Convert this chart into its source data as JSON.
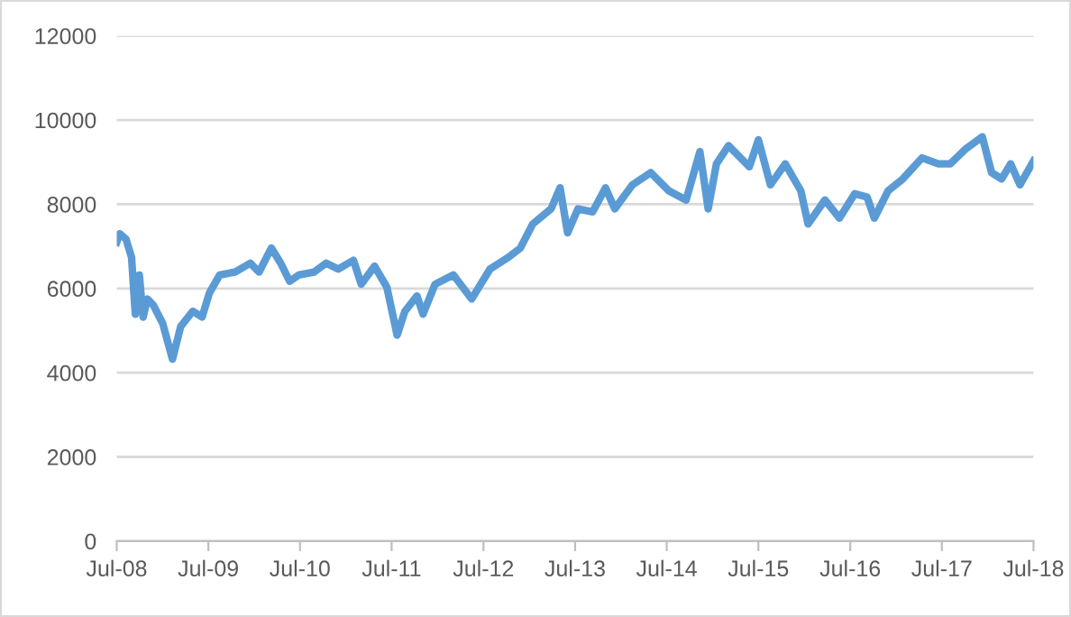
{
  "chart_data": {
    "type": "line",
    "x": [
      "2008-07-01",
      "2008-07-13",
      "2008-08-07",
      "2008-08-29",
      "2008-09-13",
      "2008-09-29",
      "2008-10-14",
      "2008-10-31",
      "2008-11-24",
      "2008-12-31",
      "2009-02-08",
      "2009-03-13",
      "2009-04-30",
      "2009-06-06",
      "2009-07-05",
      "2009-08-15",
      "2009-10-15",
      "2009-12-15",
      "2010-01-19",
      "2010-03-09",
      "2010-04-15",
      "2010-05-21",
      "2010-06-26",
      "2010-08-26",
      "2010-10-13",
      "2010-11-30",
      "2011-01-30",
      "2011-03-02",
      "2011-04-24",
      "2011-06-12",
      "2011-07-23",
      "2011-08-23",
      "2011-10-10",
      "2011-11-03",
      "2011-12-21",
      "2012-03-03",
      "2012-05-15",
      "2012-07-27",
      "2012-10-08",
      "2012-11-25",
      "2013-01-13",
      "2013-03-27",
      "2013-05-02",
      "2013-06-01",
      "2013-07-12",
      "2013-09-09",
      "2013-10-30",
      "2013-12-06",
      "2014-02-14",
      "2014-04-28",
      "2014-07-09",
      "2014-09-16",
      "2014-11-10",
      "2014-12-13",
      "2015-01-15",
      "2015-03-04",
      "2015-05-26",
      "2015-07-01",
      "2015-08-18",
      "2015-10-16",
      "2015-12-17",
      "2016-01-15",
      "2016-03-22",
      "2016-05-19",
      "2016-07-19",
      "2016-09-06",
      "2016-10-05",
      "2016-11-29",
      "2017-01-26",
      "2017-04-13",
      "2017-06-17",
      "2017-08-04",
      "2017-10-05",
      "2017-12-09",
      "2018-01-15",
      "2018-02-24",
      "2018-04-01",
      "2018-05-08",
      "2018-07-01"
    ],
    "series": [
      {
        "color": "#5b9bd5",
        "values": [
          7100,
          7300,
          7170,
          6740,
          5390,
          6320,
          5320,
          5750,
          5600,
          5170,
          4320,
          5100,
          5460,
          5320,
          5890,
          6320,
          6390,
          6600,
          6390,
          6960,
          6600,
          6170,
          6320,
          6390,
          6600,
          6460,
          6670,
          6100,
          6530,
          6030,
          4890,
          5460,
          5820,
          5390,
          6100,
          6320,
          5750,
          6460,
          6740,
          6960,
          7530,
          7890,
          8390,
          7320,
          7890,
          7820,
          8390,
          7890,
          8460,
          8750,
          8320,
          8100,
          9250,
          7890,
          8960,
          9390,
          8890,
          9530,
          8460,
          8960,
          8320,
          7530,
          8100,
          7670,
          8250,
          8170,
          7670,
          8320,
          8600,
          9100,
          8960,
          8960,
          9320,
          9600,
          8750,
          8600,
          8960,
          8460,
          9030
        ]
      }
    ],
    "xlim": [
      "2008-07-01",
      "2018-07-01"
    ],
    "xticks": [
      {
        "value": "2008-07-01",
        "label": "Jul-08"
      },
      {
        "value": "2009-07-01",
        "label": "Jul-09"
      },
      {
        "value": "2010-07-01",
        "label": "Jul-10"
      },
      {
        "value": "2011-07-01",
        "label": "Jul-11"
      },
      {
        "value": "2012-07-01",
        "label": "Jul-12"
      },
      {
        "value": "2013-07-01",
        "label": "Jul-13"
      },
      {
        "value": "2014-07-01",
        "label": "Jul-14"
      },
      {
        "value": "2015-07-01",
        "label": "Jul-15"
      },
      {
        "value": "2016-07-01",
        "label": "Jul-16"
      },
      {
        "value": "2017-07-01",
        "label": "Jul-17"
      },
      {
        "value": "2018-07-01",
        "label": "Jul-18"
      }
    ],
    "ylim": [
      0,
      12000
    ],
    "yticks": [
      0,
      2000,
      4000,
      6000,
      8000,
      10000,
      12000
    ],
    "grid": "y",
    "marker": "none",
    "line_style": "solid"
  }
}
